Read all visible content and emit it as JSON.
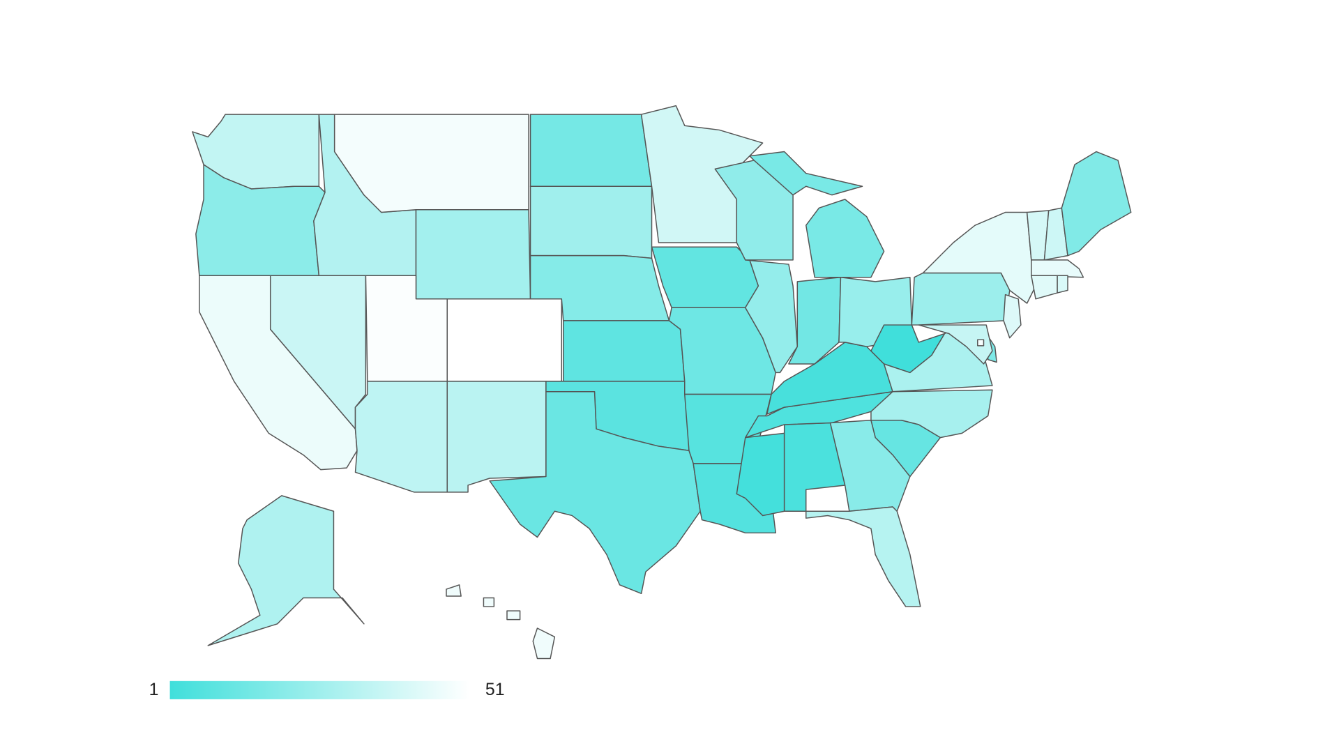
{
  "chart_data": {
    "type": "choropleth",
    "values": [
      35,
      21,
      46,
      37,
      31,
      48,
      27,
      50,
      51,
      34,
      33,
      15,
      26,
      19,
      9,
      8,
      12,
      39,
      10,
      13,
      7,
      6,
      2,
      4,
      5,
      3,
      23,
      22,
      16,
      14,
      24,
      1,
      29,
      28,
      11,
      20,
      32,
      25,
      44,
      42,
      17,
      36,
      40,
      38,
      18,
      45,
      43,
      41,
      49,
      30,
      47
    ],
    "colorbar": {
      "range": [
        1,
        51
      ],
      "colors": [
        "#40dfdb",
        "#ffffff"
      ]
    }
  }
}
